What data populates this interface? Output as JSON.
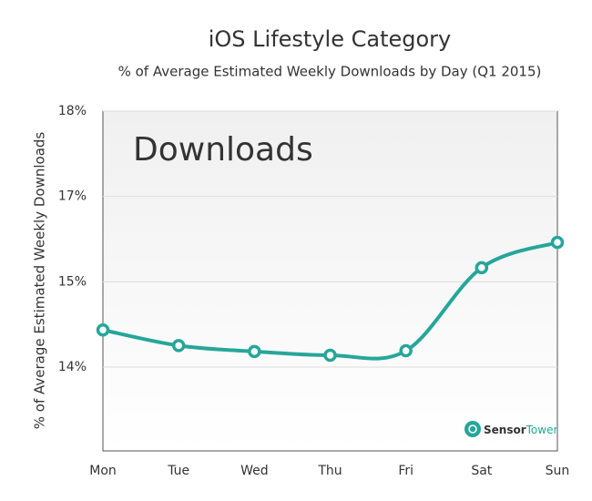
{
  "chart_data": {
    "type": "line",
    "title": "iOS Lifestyle Category",
    "subtitle": "% of Average Estimated Weekly Downloads by Day (Q1 2015)",
    "y_label": "% of  Average Estimated Weekly Downloads",
    "watermark": "Downloads",
    "logo": {
      "brand": "Sensor",
      "brand2": "Tower"
    },
    "categories": [
      "Mon",
      "Tue",
      "Wed",
      "Thu",
      "Fri",
      "Sat",
      "Sun"
    ],
    "series": [
      {
        "name": "Downloads",
        "color": "#26a69a",
        "values": [
          14.75,
          14.54,
          14.46,
          14.41,
          14.47,
          15.59,
          15.93
        ]
      }
    ],
    "ylim": [
      13.12,
      17.7
    ],
    "yticks": [
      {
        "value": 17.7,
        "label": "18%"
      },
      {
        "value": 16.55,
        "label": "17%"
      },
      {
        "value": 15.4,
        "label": "15%"
      },
      {
        "value": 14.25,
        "label": "14%"
      }
    ],
    "grid": true
  }
}
